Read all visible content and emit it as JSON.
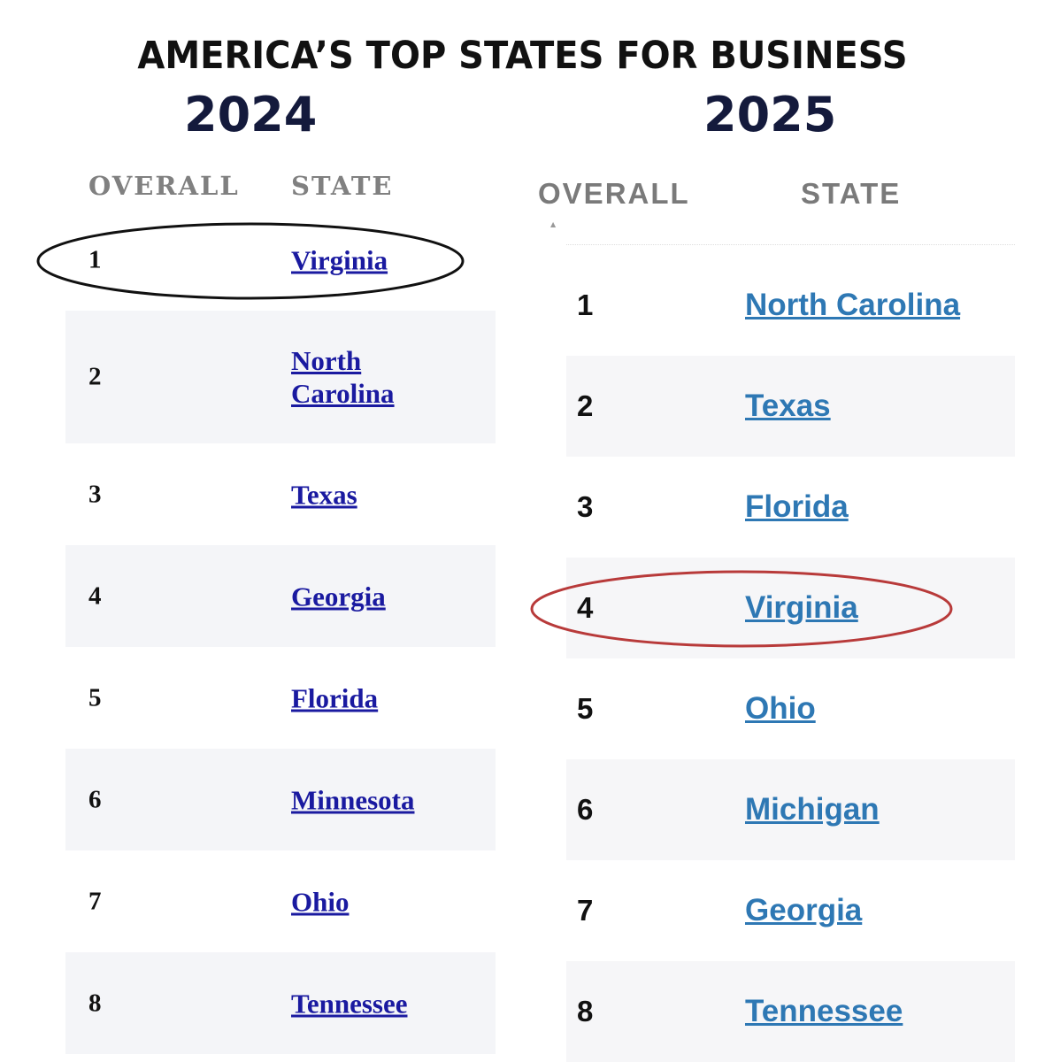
{
  "title": "AMERICA’S TOP STATES FOR BUSINESS",
  "left": {
    "year": "2024",
    "headers": {
      "overall": "OVERALL",
      "state": "STATE"
    },
    "rows": [
      {
        "rank": "1",
        "state": "Virginia"
      },
      {
        "rank": "2",
        "state": "North Carolina"
      },
      {
        "rank": "3",
        "state": "Texas"
      },
      {
        "rank": "4",
        "state": "Georgia"
      },
      {
        "rank": "5",
        "state": "Florida"
      },
      {
        "rank": "6",
        "state": "Minnesota"
      },
      {
        "rank": "7",
        "state": "Ohio"
      },
      {
        "rank": "8",
        "state": "Tennessee"
      }
    ],
    "highlight_color": "#111111"
  },
  "right": {
    "year": "2025",
    "headers": {
      "overall": "OVERALL",
      "state": "STATE"
    },
    "rows": [
      {
        "rank": "1",
        "state": "North Carolina"
      },
      {
        "rank": "2",
        "state": "Texas"
      },
      {
        "rank": "3",
        "state": "Florida"
      },
      {
        "rank": "4",
        "state": "Virginia"
      },
      {
        "rank": "5",
        "state": "Ohio"
      },
      {
        "rank": "6",
        "state": "Michigan"
      },
      {
        "rank": "7",
        "state": "Georgia"
      },
      {
        "rank": "8",
        "state": "Tennessee"
      }
    ],
    "highlight_color": "#b83a3a"
  },
  "colors": {
    "year": "#141a3c",
    "left_link": "#1a1aa0",
    "right_link": "#2e78b4"
  }
}
